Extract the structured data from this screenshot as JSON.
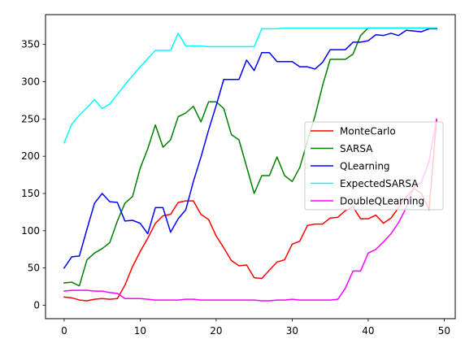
{
  "chart_data": {
    "type": "line",
    "title": "",
    "xlabel": "",
    "ylabel": "",
    "xlim": [
      -2.45,
      51.45
    ],
    "ylim": [
      -18,
      390
    ],
    "xticks": [
      0,
      10,
      20,
      30,
      40,
      50
    ],
    "yticks": [
      0,
      50,
      100,
      150,
      200,
      250,
      300,
      350
    ],
    "grid": false,
    "legend_position": "center-right",
    "x": [
      0,
      1,
      2,
      3,
      4,
      5,
      6,
      7,
      8,
      9,
      10,
      11,
      12,
      13,
      14,
      15,
      16,
      17,
      18,
      19,
      20,
      21,
      22,
      23,
      24,
      25,
      26,
      27,
      28,
      29,
      30,
      31,
      32,
      33,
      34,
      35,
      36,
      37,
      38,
      39,
      40,
      41,
      42,
      43,
      44,
      45,
      46,
      47,
      48,
      49
    ],
    "series": [
      {
        "name": "MonteCarlo",
        "color": "#ff0000",
        "values": [
          11,
          10,
          7,
          6,
          8,
          9,
          8,
          9,
          27,
          52,
          72,
          90,
          110,
          120,
          122,
          138,
          140,
          140,
          122,
          115,
          93,
          77,
          60,
          53,
          54,
          37,
          36,
          47,
          58,
          61,
          82,
          86,
          107,
          109,
          109,
          117,
          118,
          127,
          132,
          116,
          116,
          121,
          110,
          117,
          131,
          145,
          157,
          150,
          128,
          248
        ]
      },
      {
        "name": "SARSA",
        "color": "#008000",
        "values": [
          30,
          31,
          26,
          61,
          70,
          76,
          84,
          113,
          137,
          146,
          184,
          210,
          242,
          212,
          222,
          253,
          258,
          267,
          246,
          273,
          273,
          264,
          229,
          222,
          186,
          150,
          174,
          174,
          199,
          174,
          166,
          185,
          220,
          254,
          295,
          330,
          330,
          330,
          337,
          362,
          372,
          372,
          372,
          372,
          372,
          372,
          372,
          372,
          372,
          372
        ]
      },
      {
        "name": "QLearning",
        "color": "#0000ff",
        "values": [
          50,
          65,
          66,
          102,
          137,
          150,
          139,
          138,
          113,
          114,
          110,
          96,
          131,
          131,
          98,
          116,
          128,
          166,
          199,
          235,
          268,
          303,
          303,
          303,
          329,
          315,
          339,
          339,
          327,
          327,
          327,
          320,
          320,
          317,
          326,
          343,
          343,
          343,
          353,
          353,
          355,
          363,
          362,
          365,
          362,
          369,
          368,
          367,
          371,
          371
        ]
      },
      {
        "name": "ExpectedSARSA",
        "color": "#00ffff",
        "values": [
          218,
          243,
          255,
          265,
          276,
          264,
          270,
          283,
          296,
          308,
          320,
          331,
          342,
          342,
          342,
          365,
          348,
          348,
          348,
          347,
          347,
          347,
          347,
          347,
          347,
          347,
          371,
          371,
          371,
          372,
          372,
          372,
          372,
          372,
          372,
          372,
          372,
          372,
          372,
          372,
          372,
          372,
          372,
          372,
          372,
          372,
          372,
          372,
          372,
          372
        ]
      },
      {
        "name": "DoubleQLearning",
        "color": "#ff00ff",
        "values": [
          19,
          20,
          20,
          20,
          19,
          19,
          17,
          16,
          9,
          9,
          9,
          8,
          7,
          7,
          7,
          7,
          8,
          8,
          7,
          7,
          7,
          7,
          7,
          7,
          7,
          7,
          6,
          6,
          7,
          7,
          8,
          7,
          7,
          7,
          7,
          7,
          8,
          23,
          46,
          46,
          70,
          75,
          85,
          96,
          111,
          131,
          158,
          165,
          193,
          250
        ]
      }
    ]
  }
}
